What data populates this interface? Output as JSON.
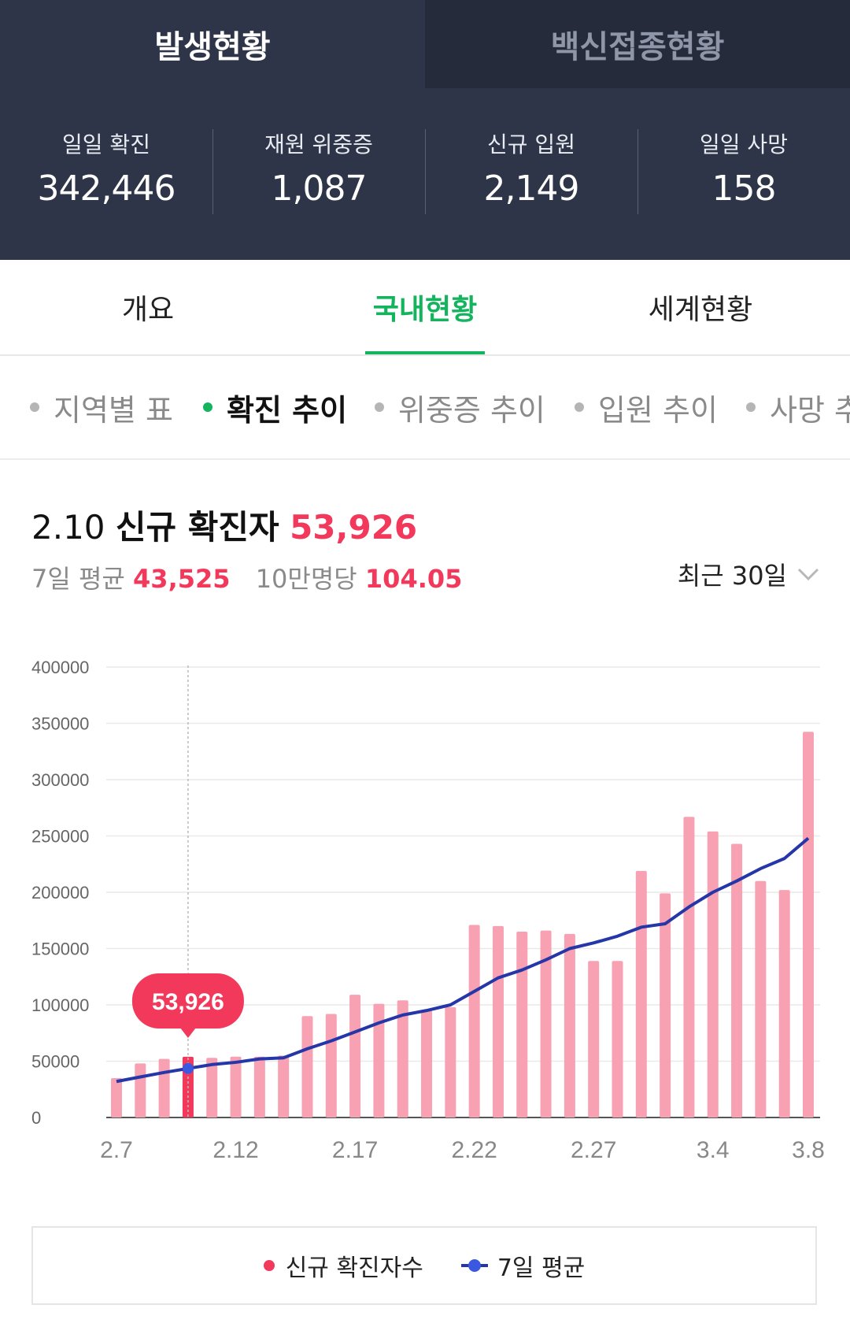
{
  "top_tabs": [
    {
      "label": "발생현황",
      "active": true
    },
    {
      "label": "백신접종현황",
      "active": false
    }
  ],
  "stats": [
    {
      "label": "일일 확진",
      "value": "342,446"
    },
    {
      "label": "재원 위중증",
      "value": "1,087"
    },
    {
      "label": "신규 입원",
      "value": "2,149"
    },
    {
      "label": "일일 사망",
      "value": "158"
    }
  ],
  "nav": [
    {
      "label": "개요"
    },
    {
      "label": "국내현황",
      "active": true
    },
    {
      "label": "세계현황"
    }
  ],
  "sub_filters": [
    {
      "label": "지역별 표"
    },
    {
      "label": "확진 추이",
      "active": true
    },
    {
      "label": "위중증 추이"
    },
    {
      "label": "입원 추이"
    },
    {
      "label": "사망 추이"
    }
  ],
  "headline": {
    "date": "2.10",
    "label": "신규 확진자",
    "value": "53,926"
  },
  "subline": {
    "avg_label": "7일 평균",
    "avg_value": "43,525",
    "per_label": "10만명당",
    "per_value": "104.05"
  },
  "period": "최근 30일",
  "colors": {
    "accent_green": "#14b45f",
    "bar": "#f7a1b2",
    "bar_selected": "#f2395b",
    "avg_line": "#2536a8",
    "value_red": "#f2395b"
  },
  "chart_data": {
    "type": "bar",
    "ylim": [
      0,
      400000
    ],
    "yticks": [
      0,
      50000,
      100000,
      150000,
      200000,
      250000,
      300000,
      350000,
      400000
    ],
    "xtick_labels": [
      "2.7",
      "2.12",
      "2.17",
      "2.22",
      "2.27",
      "3.4",
      "3.8"
    ],
    "xtick_index": [
      0,
      5,
      10,
      15,
      20,
      25,
      29
    ],
    "categories": [
      "2.7",
      "2.8",
      "2.9",
      "2.10",
      "2.11",
      "2.12",
      "2.13",
      "2.14",
      "2.15",
      "2.16",
      "2.17",
      "2.18",
      "2.19",
      "2.20",
      "2.21",
      "2.22",
      "2.23",
      "2.24",
      "2.25",
      "2.26",
      "2.27",
      "2.28",
      "3.1",
      "3.2",
      "3.3",
      "3.4",
      "3.5",
      "3.6",
      "3.7",
      "3.8"
    ],
    "series": [
      {
        "name": "신규 확진자수",
        "values": [
          35000,
          48000,
          52000,
          53926,
          53000,
          54000,
          54000,
          55000,
          90000,
          92000,
          109000,
          101000,
          104000,
          95000,
          98000,
          171000,
          170000,
          165000,
          166000,
          163000,
          139000,
          139000,
          219000,
          199000,
          267000,
          254000,
          243000,
          210000,
          202000,
          342446
        ]
      },
      {
        "name": "7일 평균",
        "values": [
          32000,
          36000,
          40000,
          43525,
          47000,
          49000,
          52000,
          53000,
          61000,
          68000,
          76000,
          84000,
          91000,
          95000,
          100000,
          112000,
          124000,
          131000,
          140000,
          150000,
          155000,
          161000,
          169000,
          172000,
          187000,
          200000,
          210000,
          221000,
          230000,
          248000
        ]
      }
    ],
    "selected_index": 3,
    "tooltip": "53,926",
    "legend": [
      "신규 확진자수",
      "7일 평균"
    ]
  }
}
